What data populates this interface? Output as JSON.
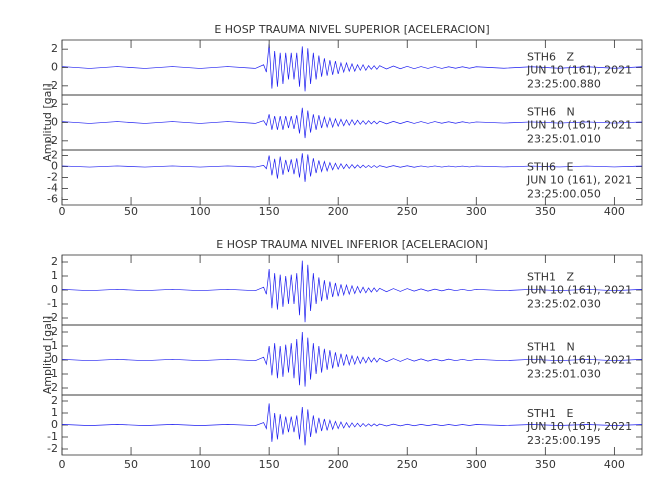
{
  "chart_data": [
    {
      "type": "line",
      "title": "E HOSP TRAUMA NIVEL SUPERIOR [ACELERACION]",
      "y_label": "Amplitud [gal]",
      "xlim": [
        0,
        420
      ],
      "xticks": [
        0,
        50,
        100,
        150,
        200,
        250,
        300,
        350,
        400
      ],
      "x": [
        0,
        20,
        40,
        60,
        80,
        100,
        120,
        140,
        146,
        148,
        150,
        152,
        154,
        156,
        158,
        160,
        162,
        164,
        166,
        168,
        170,
        172,
        174,
        176,
        178,
        180,
        182,
        184,
        186,
        188,
        190,
        192,
        194,
        196,
        198,
        200,
        202,
        204,
        206,
        208,
        210,
        212,
        214,
        216,
        218,
        220,
        222,
        224,
        226,
        228,
        230,
        235,
        240,
        245,
        250,
        255,
        260,
        265,
        270,
        275,
        280,
        285,
        290,
        295,
        300,
        320,
        340,
        360,
        380,
        400,
        420
      ],
      "panels": [
        {
          "station": "STH6   Z",
          "date": "JUN 10 (161), 2021",
          "time": "23:25:00.880",
          "ylim": [
            -3,
            3
          ],
          "yticks": [
            -2,
            0,
            2
          ],
          "color": "#1c1cf0",
          "values": [
            0.1,
            -0.1,
            0.1,
            -0.1,
            0.1,
            -0.1,
            0.1,
            -0.1,
            0.3,
            -0.5,
            2.6,
            -2.3,
            1.8,
            -2.1,
            1.6,
            -1.8,
            1.6,
            -1.3,
            1.6,
            -1.3,
            1.6,
            -2.1,
            2.3,
            -2.6,
            2.1,
            -1.8,
            1.6,
            -1.3,
            1.3,
            -1.0,
            1.0,
            -0.9,
            0.8,
            -0.8,
            0.7,
            -0.7,
            0.5,
            -0.5,
            0.5,
            -0.4,
            0.4,
            -0.4,
            0.3,
            -0.3,
            0.3,
            -0.3,
            0.2,
            -0.2,
            0.2,
            -0.2,
            0.2,
            -0.16,
            0.16,
            -0.13,
            0.13,
            -0.13,
            0.1,
            -0.1,
            0.1,
            -0.1,
            0.08,
            -0.08,
            0.08,
            -0.08,
            0.08,
            -0.08,
            0.08,
            -0.08,
            0.08,
            -0.08,
            0.08
          ]
        },
        {
          "station": "STH6   N",
          "date": "JUN 10 (161), 2021",
          "time": "23:25:01.010",
          "ylim": [
            -3,
            3
          ],
          "yticks": [
            -2,
            0,
            2
          ],
          "color": "#1c1cf0",
          "values": [
            0.1,
            -0.1,
            0.1,
            -0.1,
            0.1,
            -0.1,
            0.1,
            -0.1,
            0.2,
            -0.3,
            0.9,
            -0.8,
            0.7,
            -0.8,
            0.7,
            -0.8,
            0.7,
            -0.6,
            0.7,
            -0.7,
            0.8,
            -1.2,
            1.6,
            -1.7,
            1.3,
            -1.1,
            0.9,
            -0.8,
            0.8,
            -0.6,
            0.6,
            -0.5,
            0.5,
            -0.5,
            0.4,
            -0.4,
            0.35,
            -0.35,
            0.3,
            -0.3,
            0.3,
            -0.25,
            0.25,
            -0.2,
            0.2,
            -0.2,
            0.2,
            -0.15,
            0.15,
            -0.15,
            0.15,
            -0.15,
            0.12,
            -0.12,
            0.12,
            -0.1,
            0.1,
            -0.1,
            0.1,
            -0.08,
            0.08,
            -0.08,
            0.08,
            -0.06,
            0.06,
            -0.06,
            0.06,
            -0.06,
            0.06,
            -0.06,
            0.06
          ]
        },
        {
          "station": "STH6   E",
          "date": "JUN 10 (161), 2021",
          "time": "23:25:00.050",
          "ylim": [
            -7,
            3
          ],
          "yticks": [
            -6,
            -4,
            -2,
            0,
            2
          ],
          "color": "#1c1cf0",
          "values": [
            0.1,
            -0.1,
            0.1,
            -0.1,
            0.1,
            -0.1,
            0.1,
            -0.1,
            0.2,
            -0.4,
            2.0,
            -1.6,
            1.4,
            -2.2,
            1.8,
            -1.5,
            1.2,
            -1.0,
            1.3,
            -1.4,
            1.5,
            -2.0,
            2.4,
            -2.8,
            2.2,
            -1.8,
            1.5,
            -1.2,
            1.1,
            -0.9,
            0.9,
            -0.8,
            0.7,
            -0.6,
            0.6,
            -0.5,
            0.5,
            -0.4,
            0.4,
            -0.35,
            0.35,
            -0.3,
            0.3,
            -0.25,
            0.25,
            -0.2,
            0.2,
            -0.2,
            0.18,
            -0.18,
            0.16,
            -0.16,
            0.16,
            -0.13,
            0.13,
            -0.13,
            0.1,
            -0.1,
            0.1,
            -0.1,
            0.08,
            -0.08,
            0.08,
            -0.08,
            0.08,
            -0.08,
            0.08,
            -0.08,
            0.08,
            -0.08,
            0.08
          ]
        }
      ]
    },
    {
      "type": "line",
      "title": "E HOSP TRAUMA NIVEL INFERIOR [ACELERACION]",
      "y_label": "Amplitud [gal]",
      "xlim": [
        0,
        420
      ],
      "xticks": [
        0,
        50,
        100,
        150,
        200,
        250,
        300,
        350,
        400
      ],
      "x": [
        0,
        20,
        40,
        60,
        80,
        100,
        120,
        140,
        146,
        148,
        150,
        152,
        154,
        156,
        158,
        160,
        162,
        164,
        166,
        168,
        170,
        172,
        174,
        176,
        178,
        180,
        182,
        184,
        186,
        188,
        190,
        192,
        194,
        196,
        198,
        200,
        202,
        204,
        206,
        208,
        210,
        212,
        214,
        216,
        218,
        220,
        222,
        224,
        226,
        228,
        230,
        235,
        240,
        245,
        250,
        255,
        260,
        265,
        270,
        275,
        280,
        285,
        290,
        295,
        300,
        320,
        340,
        360,
        380,
        400,
        420
      ],
      "panels": [
        {
          "station": "STH1   Z",
          "date": "JUN 10 (161), 2021",
          "time": "23:25:02.030",
          "ylim": [
            -2.5,
            2.5
          ],
          "yticks": [
            -2,
            -1,
            0,
            1,
            2
          ],
          "color": "#1c1cf0",
          "values": [
            0.05,
            -0.05,
            0.05,
            -0.05,
            0.05,
            -0.05,
            0.05,
            -0.05,
            0.2,
            -0.3,
            1.5,
            -1.3,
            1.2,
            -1.4,
            1.1,
            -1.2,
            1.0,
            -1.0,
            1.1,
            -1.0,
            1.2,
            -1.8,
            2.1,
            -2.3,
            1.8,
            -1.5,
            1.2,
            -1.0,
            0.9,
            -0.8,
            0.7,
            -0.7,
            0.6,
            -0.5,
            0.5,
            -0.45,
            0.4,
            -0.35,
            0.35,
            -0.3,
            0.3,
            -0.25,
            0.25,
            -0.2,
            0.2,
            -0.2,
            0.15,
            -0.15,
            0.15,
            -0.12,
            0.12,
            -0.12,
            0.1,
            -0.1,
            0.1,
            -0.08,
            0.08,
            -0.08,
            0.06,
            -0.06,
            0.06,
            -0.05,
            0.05,
            -0.05,
            0.05,
            -0.05,
            0.05,
            -0.05,
            0.05,
            -0.05,
            0.05
          ]
        },
        {
          "station": "STH1   N",
          "date": "JUN 10 (161), 2021",
          "time": "23:25:01.030",
          "ylim": [
            -2.5,
            2.5
          ],
          "yticks": [
            -2,
            -1,
            0,
            1,
            2
          ],
          "color": "#1c1cf0",
          "values": [
            0.05,
            -0.05,
            0.05,
            -0.05,
            0.05,
            -0.05,
            0.05,
            -0.05,
            0.2,
            -0.3,
            1.0,
            -1.1,
            1.2,
            -1.3,
            1.0,
            -1.2,
            1.1,
            -0.9,
            1.2,
            -1.3,
            1.5,
            -1.8,
            2.0,
            -1.9,
            1.6,
            -1.4,
            1.2,
            -1.0,
            1.0,
            -0.9,
            0.8,
            -0.7,
            0.7,
            -0.6,
            0.55,
            -0.5,
            0.45,
            -0.4,
            0.4,
            -0.35,
            0.3,
            -0.3,
            0.25,
            -0.25,
            0.2,
            -0.2,
            0.2,
            -0.15,
            0.15,
            -0.15,
            0.12,
            -0.12,
            0.1,
            -0.1,
            0.1,
            -0.08,
            0.08,
            -0.08,
            0.06,
            -0.06,
            0.06,
            -0.05,
            0.05,
            -0.05,
            0.05,
            -0.05,
            0.05,
            -0.05,
            0.05,
            -0.05,
            0.05
          ]
        },
        {
          "station": "STH1   E",
          "date": "JUN 10 (161), 2021",
          "time": "23:25:00.195",
          "ylim": [
            -2.5,
            2.5
          ],
          "yticks": [
            -2,
            -1,
            0,
            1,
            2
          ],
          "color": "#1c1cf0",
          "values": [
            0.05,
            -0.05,
            0.05,
            -0.05,
            0.05,
            -0.05,
            0.05,
            -0.05,
            0.2,
            -0.3,
            1.8,
            -1.4,
            1.0,
            -1.2,
            0.9,
            -0.8,
            0.7,
            -0.6,
            0.7,
            -0.6,
            0.8,
            -1.2,
            1.5,
            -1.7,
            1.3,
            -1.0,
            0.8,
            -0.7,
            0.6,
            -0.5,
            0.5,
            -0.45,
            0.4,
            -0.35,
            0.3,
            -0.3,
            0.25,
            -0.25,
            0.2,
            -0.2,
            0.18,
            -0.16,
            0.15,
            -0.14,
            0.12,
            -0.12,
            0.1,
            -0.1,
            0.1,
            -0.08,
            0.08,
            -0.08,
            0.07,
            -0.07,
            0.06,
            -0.06,
            0.05,
            -0.05,
            0.05,
            -0.05,
            0.04,
            -0.04,
            0.04,
            -0.04,
            0.04,
            -0.04,
            0.04,
            -0.04,
            0.04,
            -0.04,
            0.04
          ]
        }
      ]
    }
  ]
}
